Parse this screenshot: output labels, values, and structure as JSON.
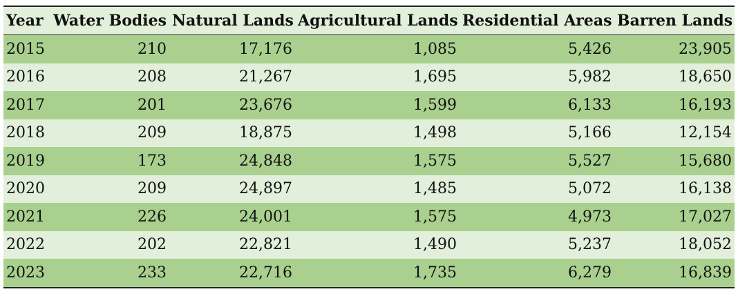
{
  "table": {
    "headers": [
      "Year",
      "Water Bodies",
      "Natural Lands",
      "Agricultural Lands",
      "Residential Areas",
      "Barren Lands"
    ],
    "rows": [
      [
        "2015",
        "210",
        "17,176",
        "1,085",
        "5,426",
        "23,905"
      ],
      [
        "2016",
        "208",
        "21,267",
        "1,695",
        "5,982",
        "18,650"
      ],
      [
        "2017",
        "201",
        "23,676",
        "1,599",
        "6,133",
        "16,193"
      ],
      [
        "2018",
        "209",
        "18,875",
        "1,498",
        "5,166",
        "12,154"
      ],
      [
        "2019",
        "173",
        "24,848",
        "1,575",
        "5,527",
        "15,680"
      ],
      [
        "2020",
        "209",
        "24,897",
        "1,485",
        "5,072",
        "16,138"
      ],
      [
        "2021",
        "226",
        "24,001",
        "1,575",
        "4,973",
        "17,027"
      ],
      [
        "2022",
        "202",
        "22,821",
        "1,490",
        "5,237",
        "18,052"
      ],
      [
        "2023",
        "233",
        "22,716",
        "1,735",
        "6,279",
        "16,839"
      ]
    ]
  },
  "colors": {
    "header_bg": "#e2efda",
    "row_dark": "#a9d08e",
    "row_light": "#e2efda",
    "rule": "#222222"
  }
}
